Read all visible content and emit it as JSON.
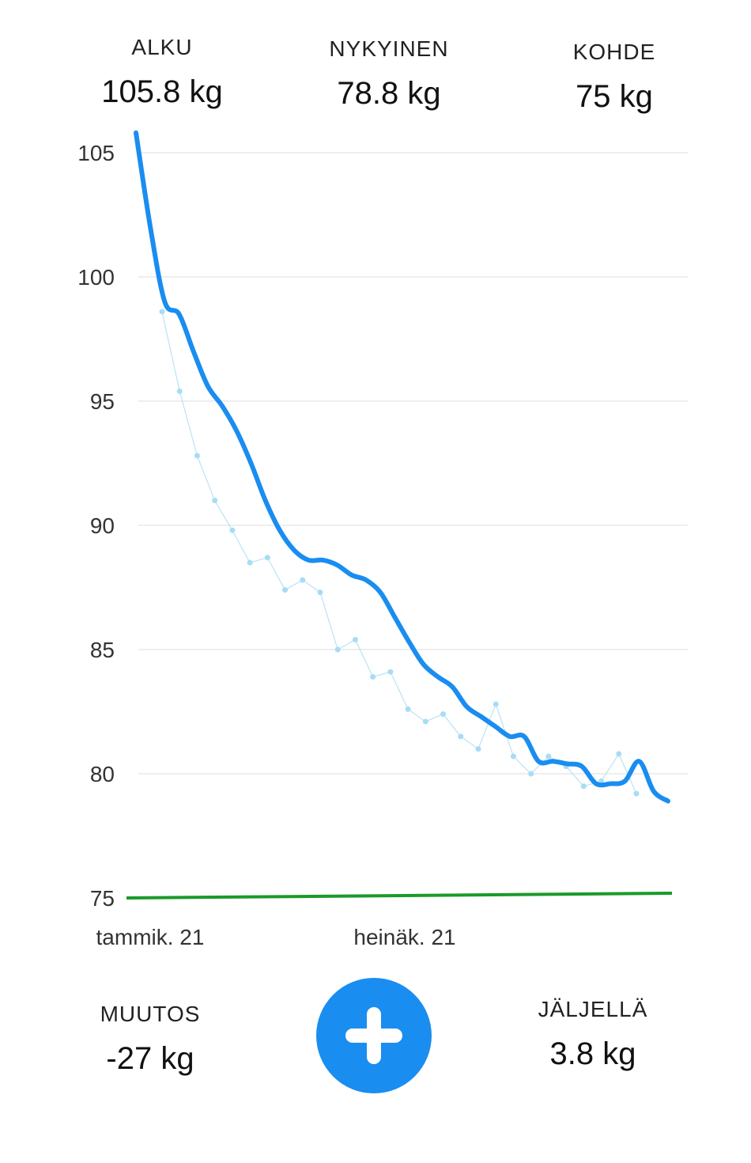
{
  "stats": {
    "start": {
      "label": "ALKU",
      "value": "105.8 kg"
    },
    "current": {
      "label": "NYKYINEN",
      "value": "78.8 kg"
    },
    "target": {
      "label": "KOHDE",
      "value": "75 kg"
    },
    "change": {
      "label": "MUUTOS",
      "value": "-27 kg"
    },
    "remaining": {
      "label": "JÄLJELLÄ",
      "value": "3.8 kg"
    }
  },
  "colors": {
    "trend": "#1a8df0",
    "points": "#a8dcf5",
    "target": "#1a9a2a",
    "grid": "#e9e9e9"
  },
  "add_button": {
    "icon": "plus-icon"
  },
  "chart_data": {
    "type": "line",
    "ylim": [
      75,
      105.8
    ],
    "yticks": [
      "105",
      "100",
      "95",
      "90",
      "85",
      "80",
      "75"
    ],
    "xticks": [
      "tammik. 21",
      "heinäk. 21"
    ],
    "target_value": 75,
    "series": [
      {
        "values": [
          105.8,
          102.0,
          99.0,
          98.5,
          97.0,
          95.6,
          94.8,
          93.8,
          92.5,
          91.0,
          89.8,
          89.0,
          88.6,
          88.6,
          88.4,
          88.0,
          87.8,
          87.3,
          86.3,
          85.3,
          84.4,
          83.9,
          83.5,
          82.7,
          82.3,
          81.9,
          81.5,
          81.5,
          80.5,
          80.5,
          80.4,
          80.3,
          79.6,
          79.6,
          79.7,
          80.5,
          79.3,
          78.9
        ]
      }
    ],
    "points": [
      98.6,
      95.4,
      92.8,
      91.0,
      89.8,
      88.5,
      88.7,
      87.4,
      87.8,
      87.3,
      85.0,
      85.4,
      83.9,
      84.1,
      82.6,
      82.1,
      82.4,
      81.5,
      81.0,
      82.8,
      80.7,
      80.0,
      80.7,
      80.3,
      79.5,
      79.7,
      80.8,
      79.2
    ]
  }
}
